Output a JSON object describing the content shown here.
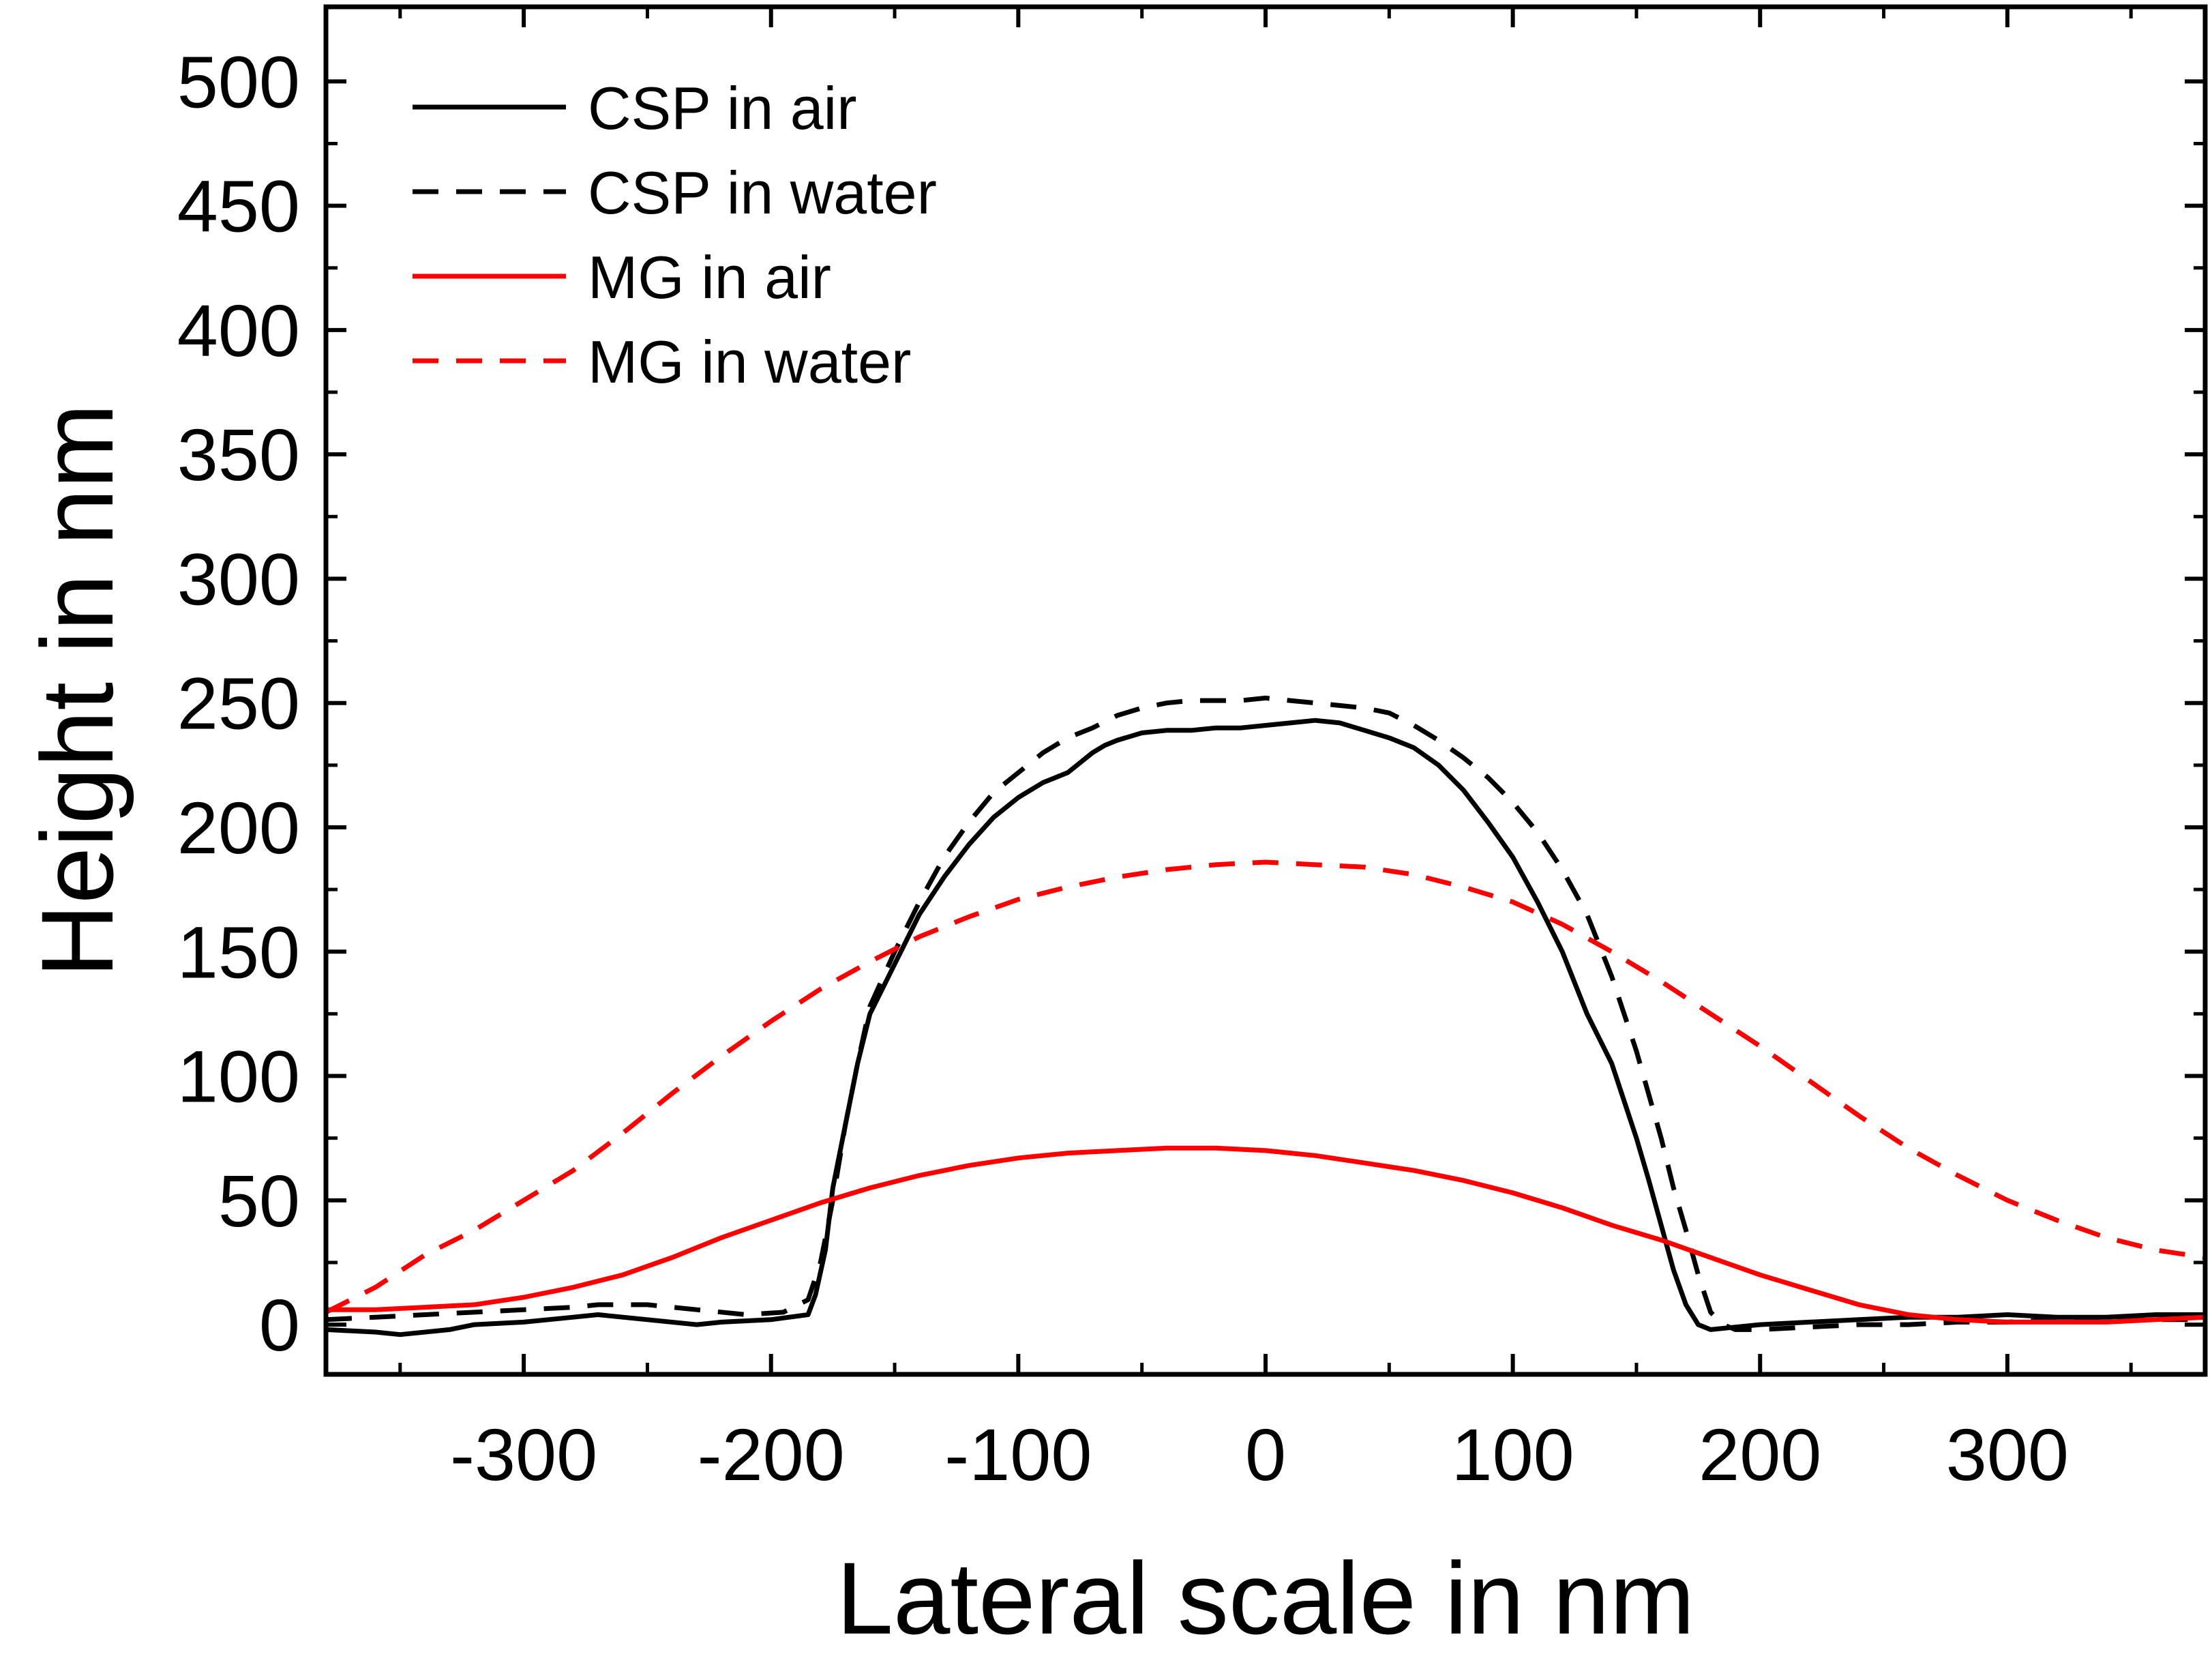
{
  "chart_data": {
    "type": "line",
    "xlabel": "Lateral scale in nm",
    "ylabel": "Height in nm",
    "xlim": [
      -380,
      380
    ],
    "ylim": [
      -20,
      530
    ],
    "xticks": [
      -300,
      -200,
      -100,
      0,
      100,
      200,
      300
    ],
    "yticks": [
      0,
      50,
      100,
      150,
      200,
      250,
      300,
      350,
      400,
      450,
      500
    ],
    "xtick_labels": [
      "-300",
      "-200",
      "-100",
      "0",
      "100",
      "200",
      "300"
    ],
    "ytick_labels": [
      "0",
      "50",
      "100",
      "150",
      "200",
      "250",
      "300",
      "350",
      "400",
      "450",
      "500"
    ],
    "legend_position": "top-left",
    "grid": false,
    "series": [
      {
        "name": "CSP in air",
        "color": "#000000",
        "dash": "solid",
        "x": [
          -380,
          -360,
          -350,
          -330,
          -320,
          -300,
          -280,
          -270,
          -250,
          -230,
          -220,
          -200,
          -185,
          -182,
          -178,
          -175,
          -170,
          -165,
          -160,
          -150,
          -140,
          -130,
          -120,
          -110,
          -100,
          -90,
          -80,
          -70,
          -65,
          -60,
          -50,
          -40,
          -30,
          -20,
          -10,
          0,
          10,
          20,
          30,
          40,
          50,
          60,
          70,
          80,
          90,
          100,
          110,
          120,
          130,
          140,
          145,
          150,
          155,
          160,
          165,
          170,
          175,
          180,
          190,
          200,
          220,
          240,
          260,
          280,
          300,
          320,
          340,
          360,
          380
        ],
        "y": [
          -2,
          -3,
          -4,
          -2,
          0,
          1,
          3,
          4,
          2,
          0,
          1,
          2,
          4,
          12,
          30,
          55,
          80,
          105,
          125,
          145,
          165,
          180,
          193,
          204,
          212,
          218,
          222,
          230,
          233,
          235,
          238,
          239,
          239,
          240,
          240,
          241,
          242,
          243,
          242,
          239,
          236,
          232,
          225,
          215,
          202,
          188,
          170,
          150,
          125,
          105,
          90,
          75,
          58,
          40,
          22,
          8,
          0,
          -2,
          -1,
          0,
          1,
          2,
          3,
          3,
          4,
          3,
          3,
          4,
          4
        ]
      },
      {
        "name": "CSP in water",
        "color": "#000000",
        "dash": "dashed",
        "x": [
          -380,
          -360,
          -340,
          -320,
          -300,
          -280,
          -270,
          -250,
          -230,
          -210,
          -195,
          -185,
          -180,
          -175,
          -170,
          -165,
          -160,
          -150,
          -140,
          -130,
          -120,
          -110,
          -100,
          -90,
          -80,
          -70,
          -60,
          -50,
          -40,
          -30,
          -20,
          -10,
          0,
          10,
          20,
          30,
          40,
          50,
          60,
          70,
          80,
          90,
          100,
          110,
          120,
          130,
          140,
          150,
          160,
          165,
          170,
          175,
          180,
          185,
          190,
          200,
          220,
          240,
          260,
          280,
          300,
          320,
          340,
          360,
          380
        ],
        "y": [
          2,
          3,
          4,
          5,
          6,
          7,
          8,
          8,
          6,
          4,
          5,
          10,
          25,
          50,
          80,
          105,
          128,
          150,
          170,
          188,
          202,
          214,
          222,
          230,
          236,
          240,
          245,
          248,
          250,
          251,
          251,
          251,
          252,
          251,
          250,
          249,
          248,
          246,
          241,
          235,
          228,
          220,
          210,
          198,
          183,
          165,
          140,
          110,
          75,
          55,
          38,
          20,
          5,
          0,
          -2,
          -2,
          -1,
          0,
          0,
          1,
          1,
          2,
          2,
          2,
          2
        ]
      },
      {
        "name": "MG in air",
        "color": "#ff0000",
        "dash": "solid",
        "x": [
          -380,
          -360,
          -340,
          -320,
          -300,
          -280,
          -260,
          -240,
          -220,
          -200,
          -180,
          -160,
          -140,
          -120,
          -100,
          -80,
          -60,
          -40,
          -20,
          0,
          20,
          40,
          60,
          80,
          100,
          120,
          140,
          160,
          180,
          200,
          220,
          240,
          260,
          280,
          300,
          320,
          340,
          360,
          380
        ],
        "y": [
          6,
          6,
          7,
          8,
          11,
          15,
          20,
          27,
          35,
          42,
          49,
          55,
          60,
          64,
          67,
          69,
          70,
          71,
          71,
          70,
          68,
          65,
          62,
          58,
          53,
          47,
          40,
          34,
          27,
          20,
          14,
          8,
          4,
          2,
          1,
          1,
          1,
          2,
          3
        ]
      },
      {
        "name": "MG in water",
        "color": "#ff0000",
        "dash": "dashed",
        "x": [
          -380,
          -360,
          -340,
          -320,
          -300,
          -280,
          -260,
          -240,
          -220,
          -200,
          -180,
          -160,
          -140,
          -120,
          -100,
          -80,
          -60,
          -40,
          -20,
          0,
          20,
          40,
          60,
          80,
          100,
          120,
          140,
          160,
          180,
          200,
          220,
          240,
          260,
          280,
          300,
          320,
          340,
          360,
          380
        ],
        "y": [
          5,
          15,
          28,
          38,
          50,
          62,
          77,
          93,
          108,
          122,
          135,
          146,
          156,
          164,
          171,
          176,
          180,
          183,
          185,
          186,
          185,
          184,
          181,
          176,
          170,
          161,
          150,
          138,
          125,
          112,
          98,
          84,
          71,
          60,
          50,
          42,
          35,
          30,
          27
        ]
      }
    ]
  }
}
